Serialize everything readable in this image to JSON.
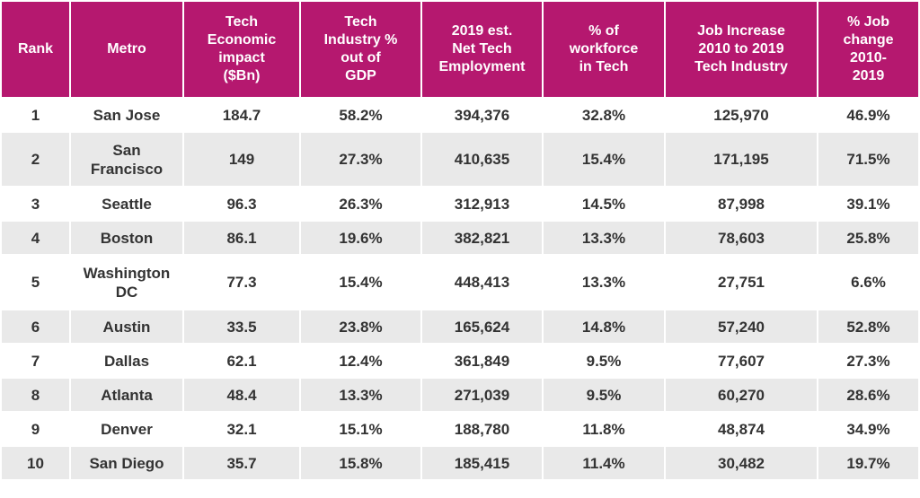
{
  "columns": [
    "Rank",
    "Metro",
    "Tech\nEconomic\nimpact\n($Bn)",
    "Tech\nIndustry %\nout of\nGDP",
    "2019 est.\nNet Tech\nEmployment",
    "% of\nworkforce\nin Tech",
    "Job Increase\n2010 to 2019\nTech Industry",
    "% Job\nchange\n2010-\n2019"
  ],
  "rows": [
    [
      "1",
      "San Jose",
      "184.7",
      "58.2%",
      "394,376",
      "32.8%",
      "125,970",
      "46.9%"
    ],
    [
      "2",
      "San\nFrancisco",
      "149",
      "27.3%",
      "410,635",
      "15.4%",
      "171,195",
      "71.5%"
    ],
    [
      "3",
      "Seattle",
      "96.3",
      "26.3%",
      "312,913",
      "14.5%",
      "87,998",
      "39.1%"
    ],
    [
      "4",
      "Boston",
      "86.1",
      "19.6%",
      "382,821",
      "13.3%",
      "78,603",
      "25.8%"
    ],
    [
      "5",
      "Washington\nDC",
      "77.3",
      "15.4%",
      "448,413",
      "13.3%",
      "27,751",
      "6.6%"
    ],
    [
      "6",
      "Austin",
      "33.5",
      "23.8%",
      "165,624",
      "14.8%",
      "57,240",
      "52.8%"
    ],
    [
      "7",
      "Dallas",
      "62.1",
      "12.4%",
      "361,849",
      "9.5%",
      "77,607",
      "27.3%"
    ],
    [
      "8",
      "Atlanta",
      "48.4",
      "13.3%",
      "271,039",
      "9.5%",
      "60,270",
      "28.6%"
    ],
    [
      "9",
      "Denver",
      "32.1",
      "15.1%",
      "188,780",
      "11.8%",
      "48,874",
      "34.9%"
    ],
    [
      "10",
      "San Diego",
      "35.7",
      "15.8%",
      "185,415",
      "11.4%",
      "30,482",
      "19.7%"
    ]
  ],
  "colors": {
    "header_bg": "#b5186f",
    "header_text": "#ffffff",
    "stripe_bg": "#e9e9e9",
    "cell_text": "#333333"
  }
}
